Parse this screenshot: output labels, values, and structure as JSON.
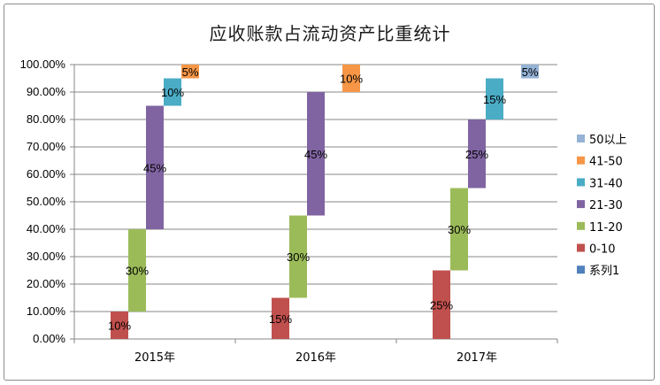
{
  "chart_data": {
    "type": "bar",
    "title": "应收账款占流动资产比重统计",
    "categories": [
      "2015年",
      "2016年",
      "2017年"
    ],
    "ylim": [
      0,
      1
    ],
    "yticks": [
      "0.00%",
      "10.00%",
      "20.00%",
      "30.00%",
      "40.00%",
      "50.00%",
      "60.00%",
      "70.00%",
      "80.00%",
      "90.00%",
      "100.00%"
    ],
    "grid": true,
    "legend_position": "right",
    "series": [
      {
        "name": "系列1",
        "color": "#4f81bd",
        "segments": []
      },
      {
        "name": "0-10",
        "color": "#c0504d",
        "segments": [
          {
            "category": "2015年",
            "start": 0.0,
            "end": 0.1,
            "label": "10%"
          },
          {
            "category": "2016年",
            "start": 0.0,
            "end": 0.15,
            "label": "15%"
          },
          {
            "category": "2017年",
            "start": 0.0,
            "end": 0.25,
            "label": "25%"
          }
        ]
      },
      {
        "name": "11-20",
        "color": "#9bbb59",
        "segments": [
          {
            "category": "2015年",
            "start": 0.1,
            "end": 0.4,
            "label": "30%"
          },
          {
            "category": "2016年",
            "start": 0.15,
            "end": 0.45,
            "label": "30%"
          },
          {
            "category": "2017年",
            "start": 0.25,
            "end": 0.55,
            "label": "30%"
          }
        ]
      },
      {
        "name": "21-30",
        "color": "#8064a2",
        "segments": [
          {
            "category": "2015年",
            "start": 0.4,
            "end": 0.85,
            "label": "45%"
          },
          {
            "category": "2016年",
            "start": 0.45,
            "end": 0.9,
            "label": "45%"
          },
          {
            "category": "2017年",
            "start": 0.55,
            "end": 0.8,
            "label": "25%"
          }
        ]
      },
      {
        "name": "31-40",
        "color": "#4bacc6",
        "segments": [
          {
            "category": "2015年",
            "start": 0.85,
            "end": 0.95,
            "label": "10%"
          },
          {
            "category": "2017年",
            "start": 0.8,
            "end": 0.95,
            "label": "15%"
          }
        ]
      },
      {
        "name": "41-50",
        "color": "#f79646",
        "segments": [
          {
            "category": "2015年",
            "start": 0.95,
            "end": 1.0,
            "label": "5%"
          },
          {
            "category": "2016年",
            "start": 0.9,
            "end": 1.0,
            "label": "10%"
          }
        ]
      },
      {
        "name": "50以上",
        "color": "#95b3d7",
        "segments": [
          {
            "category": "2017年",
            "start": 0.95,
            "end": 1.0,
            "label": "5%"
          }
        ]
      }
    ],
    "legend_order": [
      "50以上",
      "41-50",
      "31-40",
      "21-30",
      "11-20",
      "0-10",
      "系列1"
    ]
  }
}
